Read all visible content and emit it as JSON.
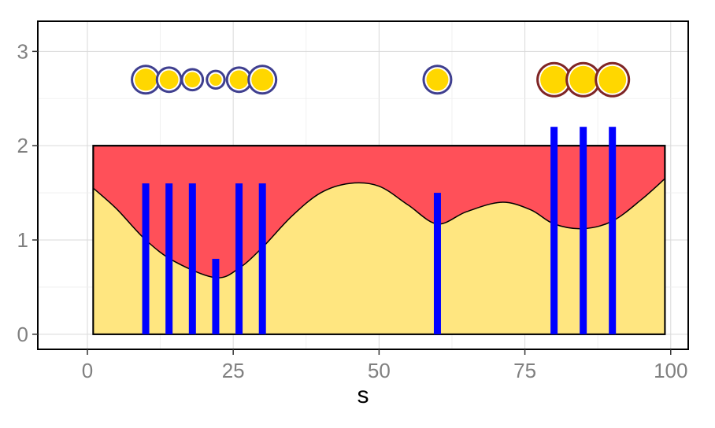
{
  "chart_data": {
    "type": "area",
    "title": "",
    "xlabel": "s",
    "ylabel": "",
    "xlim": [
      -8.5,
      103
    ],
    "ylim": [
      -0.16,
      3.32
    ],
    "x_ticks": [
      0,
      25,
      50,
      75,
      100
    ],
    "x_tick_labels": [
      "0",
      "25",
      "50",
      "75",
      "100"
    ],
    "y_ticks": [
      0,
      1,
      2,
      3
    ],
    "y_tick_labels": [
      "0",
      "1",
      "2",
      "3"
    ],
    "grid": true,
    "band": {
      "x_start": 1,
      "x_end": 99,
      "y_bottom": 0,
      "y_top": 2,
      "fill": "#ff5059"
    },
    "curve": {
      "fill": "#ffe680",
      "x": [
        1,
        5,
        10,
        15,
        22,
        26,
        30,
        35,
        40,
        45,
        50,
        55,
        60,
        65,
        71,
        76,
        80,
        85,
        90,
        95,
        99
      ],
      "y": [
        1.55,
        1.33,
        1.0,
        0.77,
        0.6,
        0.7,
        0.92,
        1.25,
        1.5,
        1.6,
        1.57,
        1.37,
        1.17,
        1.3,
        1.4,
        1.32,
        1.17,
        1.12,
        1.2,
        1.43,
        1.65
      ]
    },
    "bars": {
      "color": "#0000ff",
      "x": [
        10,
        14,
        18,
        22,
        26,
        30,
        60,
        80,
        85,
        90
      ],
      "values": [
        1.6,
        1.6,
        1.6,
        0.8,
        1.6,
        1.6,
        1.5,
        2.2,
        2.2,
        2.2
      ]
    },
    "markers": {
      "y": 2.7,
      "fill": "#ffd700",
      "points": [
        {
          "x": 10,
          "size": 1.0,
          "border": "#3f3f8f"
        },
        {
          "x": 14,
          "size": 0.85,
          "border": "#3f3f8f"
        },
        {
          "x": 18,
          "size": 0.7,
          "border": "#3f3f8f"
        },
        {
          "x": 22,
          "size": 0.55,
          "border": "#3f3f8f"
        },
        {
          "x": 26,
          "size": 0.85,
          "border": "#3f3f8f"
        },
        {
          "x": 30,
          "size": 1.0,
          "border": "#3f3f8f"
        },
        {
          "x": 60,
          "size": 1.0,
          "border": "#3f3f8f"
        },
        {
          "x": 80,
          "size": 1.25,
          "border": "#7f2525"
        },
        {
          "x": 85,
          "size": 1.25,
          "border": "#7f2525"
        },
        {
          "x": 90,
          "size": 1.25,
          "border": "#7f2525"
        }
      ]
    }
  }
}
